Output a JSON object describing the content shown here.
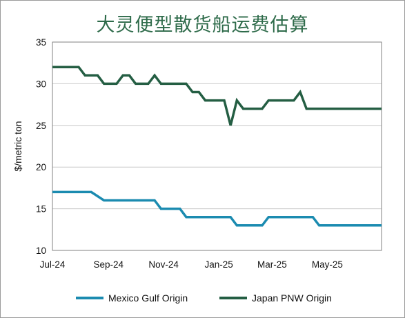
{
  "chart_data": {
    "type": "line",
    "title": "大灵便型散货船运费估算",
    "xlabel": "",
    "ylabel": "$/metric ton",
    "x_tick_labels": [
      "Jul-24",
      "Sep-24",
      "Nov-24",
      "Jan-25",
      "Mar-25",
      "May-25"
    ],
    "ylim": [
      10,
      35
    ],
    "y_ticks": [
      10,
      15,
      20,
      25,
      30,
      35
    ],
    "grid": true,
    "legend_position": "bottom",
    "series": [
      {
        "name": "Mexico Gulf Origin",
        "color": "#1b8bb0",
        "points": [
          [
            "2024-07-01",
            17
          ],
          [
            "2024-08-13",
            17
          ],
          [
            "2024-08-27",
            16
          ],
          [
            "2024-09-03",
            16
          ],
          [
            "2024-10-22",
            16
          ],
          [
            "2024-10-29",
            15
          ],
          [
            "2024-11-19",
            15
          ],
          [
            "2024-11-26",
            14
          ],
          [
            "2025-01-14",
            14
          ],
          [
            "2025-01-21",
            13
          ],
          [
            "2025-02-18",
            13
          ],
          [
            "2025-02-25",
            14
          ],
          [
            "2025-04-15",
            14
          ],
          [
            "2025-04-22",
            13
          ],
          [
            "2025-06-30",
            13
          ]
        ]
      },
      {
        "name": "Japan PNW Origin",
        "color": "#245e43",
        "points": [
          [
            "2024-07-01",
            32
          ],
          [
            "2024-07-30",
            32
          ],
          [
            "2024-08-06",
            31
          ],
          [
            "2024-08-20",
            31
          ],
          [
            "2024-08-27",
            30
          ],
          [
            "2024-09-10",
            30
          ],
          [
            "2024-09-17",
            31
          ],
          [
            "2024-09-24",
            31
          ],
          [
            "2024-10-01",
            30
          ],
          [
            "2024-10-15",
            30
          ],
          [
            "2024-10-22",
            31
          ],
          [
            "2024-10-29",
            30
          ],
          [
            "2024-11-26",
            30
          ],
          [
            "2024-12-03",
            29
          ],
          [
            "2024-12-10",
            29
          ],
          [
            "2024-12-17",
            28
          ],
          [
            "2025-01-07",
            28
          ],
          [
            "2025-01-14",
            25
          ],
          [
            "2025-01-21",
            28
          ],
          [
            "2025-01-28",
            27
          ],
          [
            "2025-02-18",
            27
          ],
          [
            "2025-02-25",
            28
          ],
          [
            "2025-03-25",
            28
          ],
          [
            "2025-04-01",
            29
          ],
          [
            "2025-04-08",
            27
          ],
          [
            "2025-06-30",
            27
          ]
        ]
      }
    ]
  }
}
